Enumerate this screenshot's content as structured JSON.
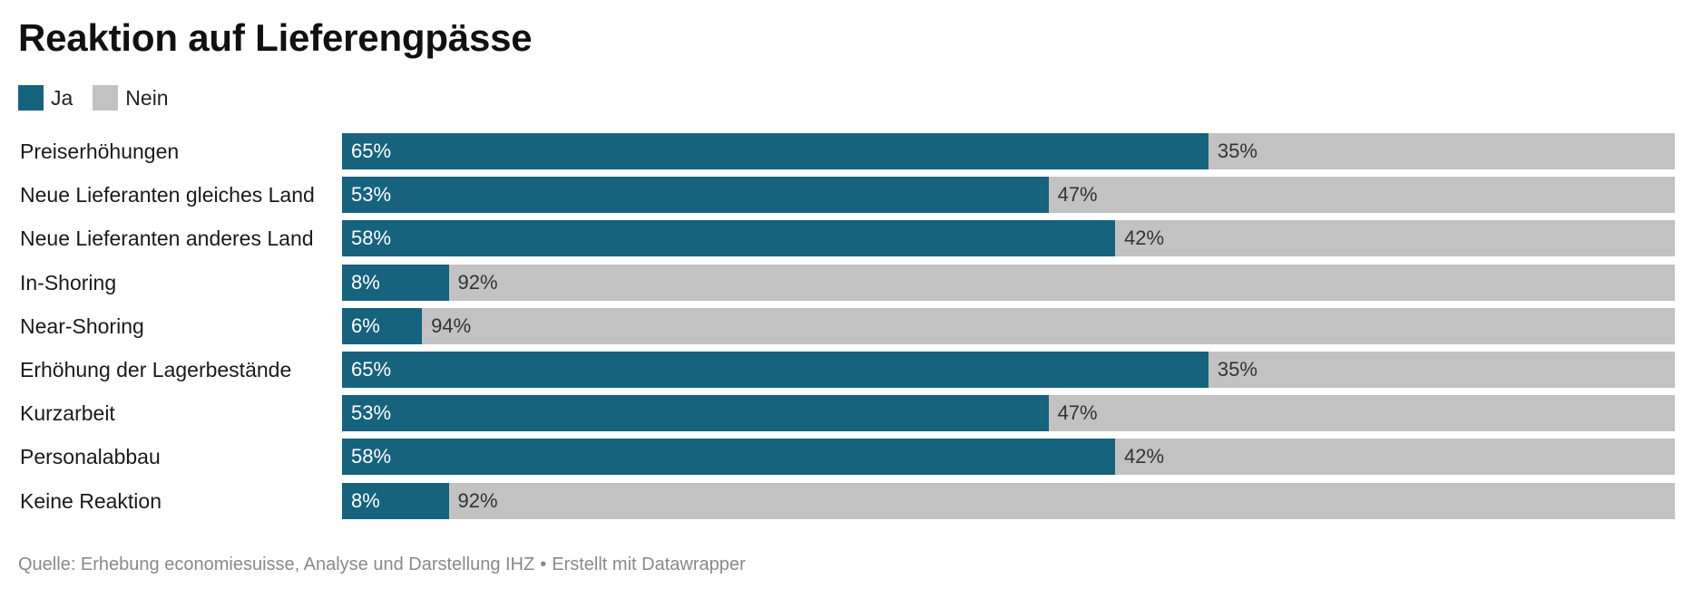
{
  "chart_data": {
    "type": "bar",
    "title": "Reaktion auf Lieferengpässe",
    "categories": [
      "Preiserhöhungen",
      "Neue Lieferanten gleiches Land",
      "Neue Lieferanten anderes Land",
      "In-Shoring",
      "Near-Shoring",
      "Erhöhung der Lagerbestände",
      "Kurzarbeit",
      "Personalabbau",
      "Keine Reaktion"
    ],
    "series": [
      {
        "name": "Ja",
        "color": "#17627c",
        "values": [
          65,
          53,
          58,
          8,
          6,
          65,
          53,
          58,
          8
        ]
      },
      {
        "name": "Nein",
        "color": "#c2c2c2",
        "values": [
          35,
          47,
          42,
          92,
          94,
          35,
          47,
          42,
          92
        ]
      }
    ],
    "stacked": true,
    "orientation": "horizontal",
    "value_suffix": "%",
    "xlim": [
      0,
      100
    ],
    "legend_placement": "top-left",
    "grid": false
  },
  "source": {
    "text": "Quelle: Erhebung economiesuisse, Analyse und Darstellung IHZ",
    "separator": "•",
    "credit": "Erstellt mit Datawrapper"
  }
}
